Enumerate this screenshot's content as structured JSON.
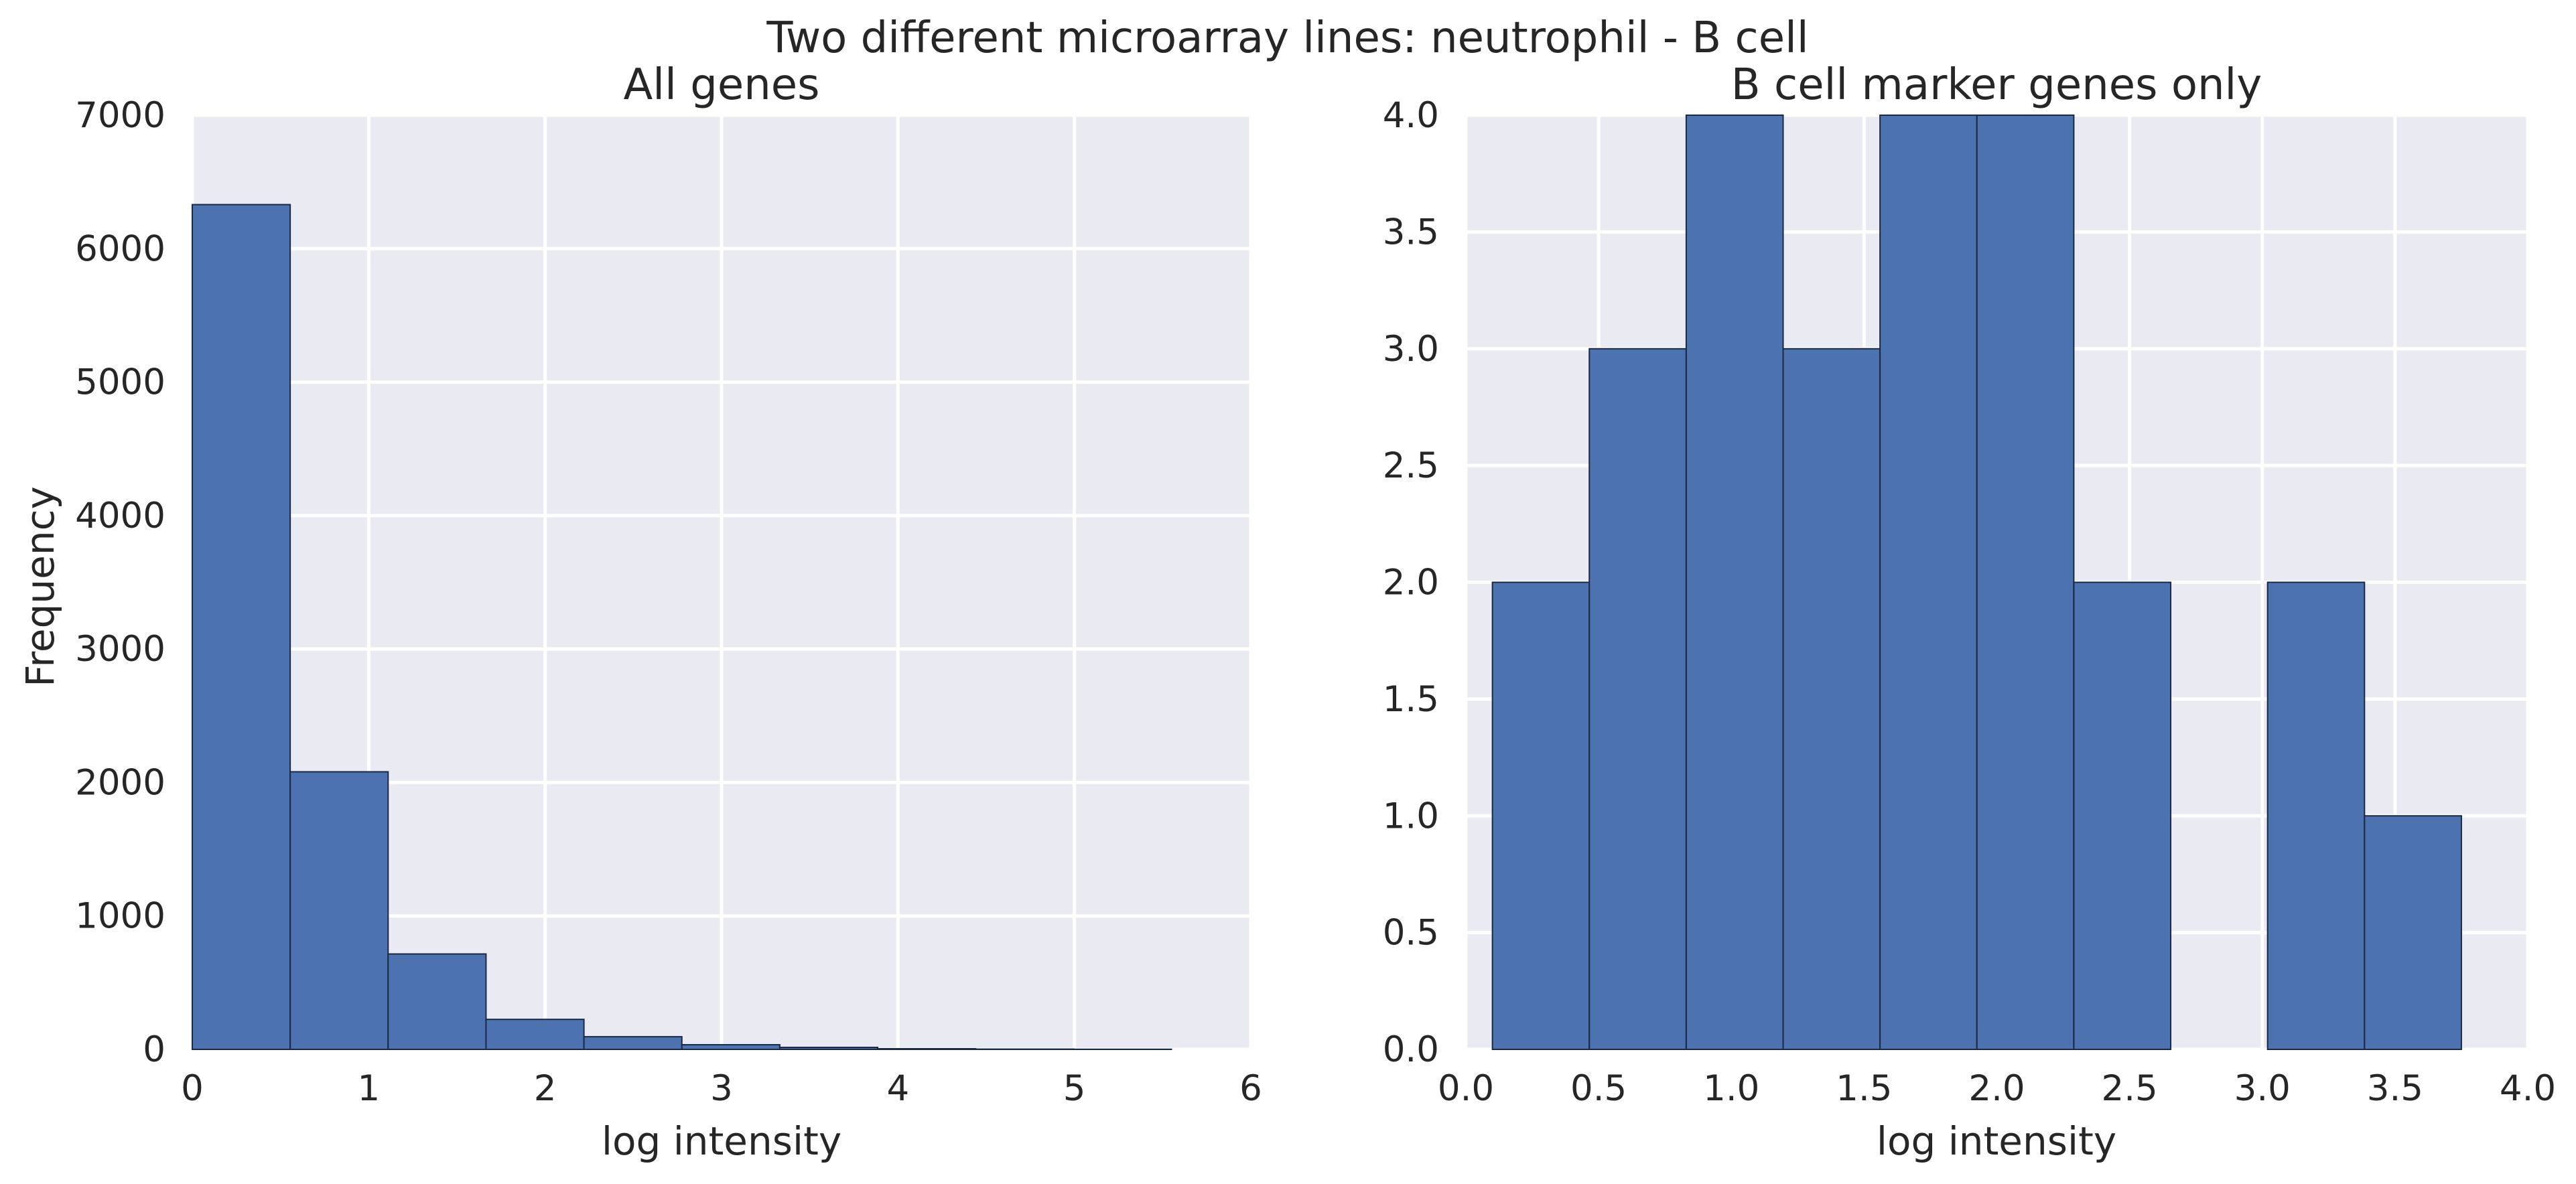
{
  "figure": {
    "title": "Two different microarray lines: neutrophil - B cell",
    "background": "#EAEAF2",
    "bar_color": "#4C72B0"
  },
  "chart_data": [
    {
      "type": "bar",
      "title": "All genes",
      "xlabel": "log intensity",
      "ylabel": "Frequency",
      "xlim": [
        0,
        6
      ],
      "ylim": [
        0,
        7000
      ],
      "xticks": [
        "0",
        "1",
        "2",
        "3",
        "4",
        "5",
        "6"
      ],
      "yticks": [
        "0",
        "1000",
        "2000",
        "3000",
        "4000",
        "5000",
        "6000",
        "7000"
      ],
      "bin_edges": [
        0,
        0.555,
        1.11,
        1.665,
        2.22,
        2.775,
        3.33,
        3.885,
        4.44,
        4.995,
        5.55
      ],
      "values": [
        6330,
        2080,
        715,
        225,
        95,
        35,
        15,
        5,
        2,
        1
      ],
      "grid": true
    },
    {
      "type": "bar",
      "title": "B cell marker genes only",
      "xlabel": "log intensity",
      "ylabel": "",
      "xlim": [
        0,
        4
      ],
      "ylim": [
        0,
        4
      ],
      "xticks": [
        "0.0",
        "0.5",
        "1.0",
        "1.5",
        "2.0",
        "2.5",
        "3.0",
        "3.5",
        "4.0"
      ],
      "yticks": [
        "0.0",
        "0.5",
        "1.0",
        "1.5",
        "2.0",
        "2.5",
        "3.0",
        "3.5",
        "4.0"
      ],
      "bin_edges": [
        0.1,
        0.465,
        0.83,
        1.195,
        1.56,
        1.925,
        2.29,
        2.655,
        3.02,
        3.385,
        3.75
      ],
      "values": [
        2,
        3,
        4,
        3,
        4,
        4,
        2,
        0,
        2,
        1
      ],
      "grid": true
    }
  ]
}
